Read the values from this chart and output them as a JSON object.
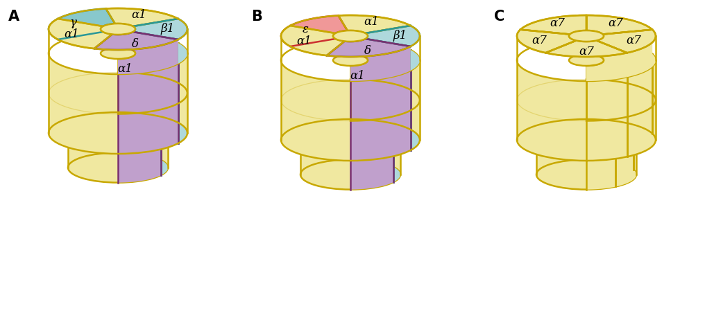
{
  "bg_color": "#ffffff",
  "outline_color": "#c8a800",
  "colors": {
    "yellow": "#f0e8a0",
    "yellow_dark": "#d4bc00",
    "cyan_border": "#2a9898",
    "light_cyan": "#aed8dc",
    "purple_border": "#7a3070",
    "purple_fill": "#c0a0cc",
    "gamma_fill": "#88c8cc",
    "epsilon_fill": "#f09898",
    "epsilon_border": "#cc3030"
  },
  "panel_labels": [
    "A",
    "B",
    "C"
  ],
  "panel_label_fontsize": 15,
  "label_fontsize": 12
}
